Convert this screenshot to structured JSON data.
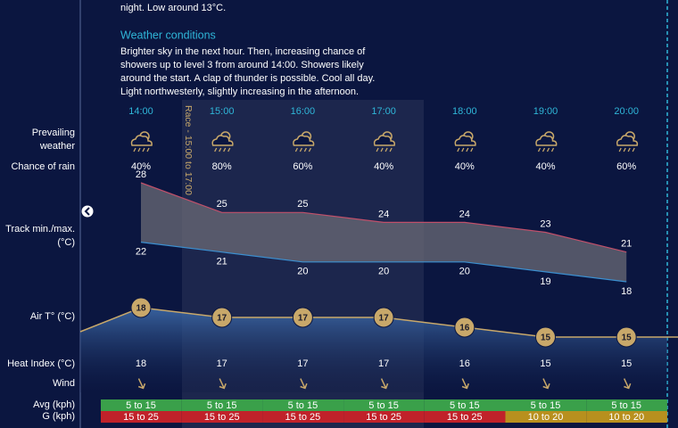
{
  "intro_tail": "night. Low around 13°C.",
  "conditions": {
    "title": "Weather conditions",
    "lines": [
      "Brighter sky in the next hour. Then, increasing chance of",
      "showers up to level 3 from around 14:00. Showers likely",
      "around the start. A clap of thunder is possible. Cool all day.",
      "Light northwesterly, slightly increasing in the afternoon."
    ]
  },
  "race_label": "Race - 15:00 to 17:00",
  "times": [
    "14:00",
    "15:00",
    "16:00",
    "17:00",
    "18:00",
    "19:00",
    "20:00"
  ],
  "row_labels": {
    "prevailing_weather": [
      "Prevailing",
      "weather"
    ],
    "chance_of_rain": "Chance of rain",
    "track": [
      "Track min./max.",
      "(°C)"
    ],
    "air_temp": "Air T° (°C)",
    "heat_index": "Heat Index (°C)",
    "wind": "Wind",
    "avg": "Avg (kph)",
    "gust": "G (kph)"
  },
  "chance_of_rain": {
    "values": [
      40,
      80,
      60,
      40,
      40,
      40,
      60
    ],
    "value_labels": [
      "40%",
      "80%",
      "60%",
      "40%",
      "40%",
      "40%",
      "60%"
    ]
  },
  "track_max": [
    28,
    25,
    25,
    24,
    24,
    23,
    21
  ],
  "track_min": [
    22,
    21,
    20,
    20,
    20,
    19,
    18
  ],
  "air_temp": [
    18,
    17,
    17,
    17,
    16,
    15,
    15
  ],
  "heat_index": [
    18,
    17,
    17,
    17,
    16,
    15,
    15
  ],
  "avg_wind": [
    "5 to 15",
    "5 to 15",
    "5 to 15",
    "5 to 15",
    "5 to 15",
    "5 to 15",
    "5 to 15"
  ],
  "gust": [
    "15 to 25",
    "15 to 25",
    "15 to 25",
    "15 to 25",
    "15 to 25",
    "10 to 20",
    "10 to 20"
  ]
}
